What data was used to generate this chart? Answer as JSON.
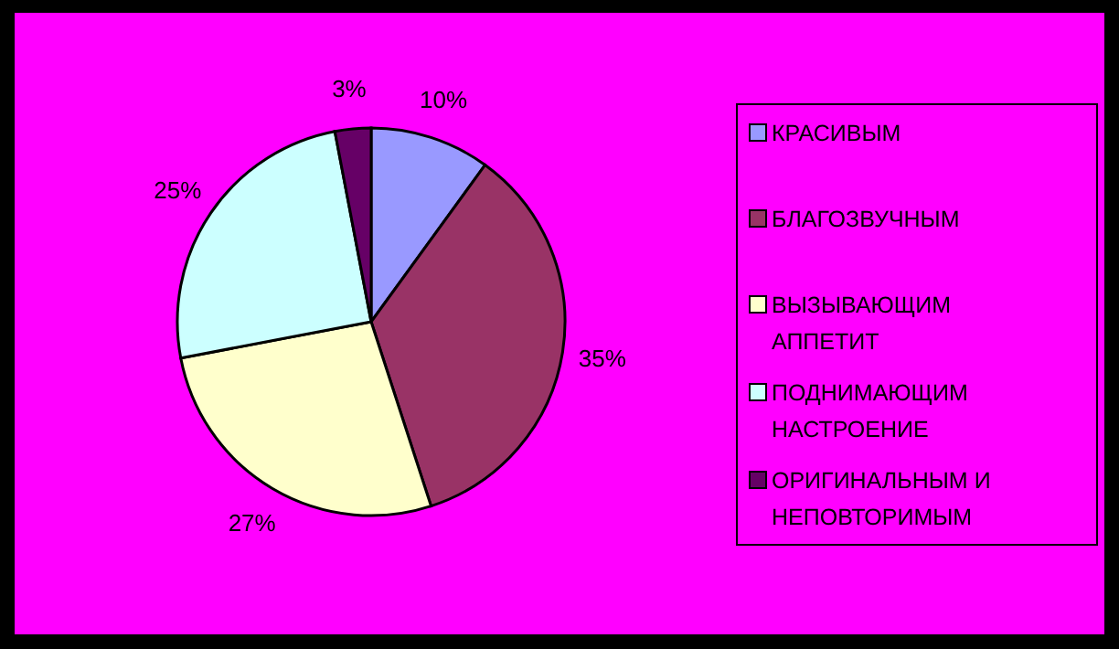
{
  "chart_data": {
    "type": "pie",
    "categories": [
      "КРАСИВЫМ",
      "БЛАГОЗВУЧНЫМ",
      "ВЫЗЫВАЮЩИМ АППЕТИТ",
      "ПОДНИМАЮЩИМ НАСТРОЕНИЕ",
      "ОРИГИНАЛЬНЫМ И НЕПОВТОРИМЫМ"
    ],
    "values": [
      10,
      35,
      27,
      25,
      3
    ],
    "colors": [
      "#9999ff",
      "#993366",
      "#ffffcc",
      "#ccffff",
      "#660066"
    ],
    "value_labels": [
      "10%",
      "35%",
      "27%",
      "25%",
      "3%"
    ],
    "legend": "right"
  }
}
